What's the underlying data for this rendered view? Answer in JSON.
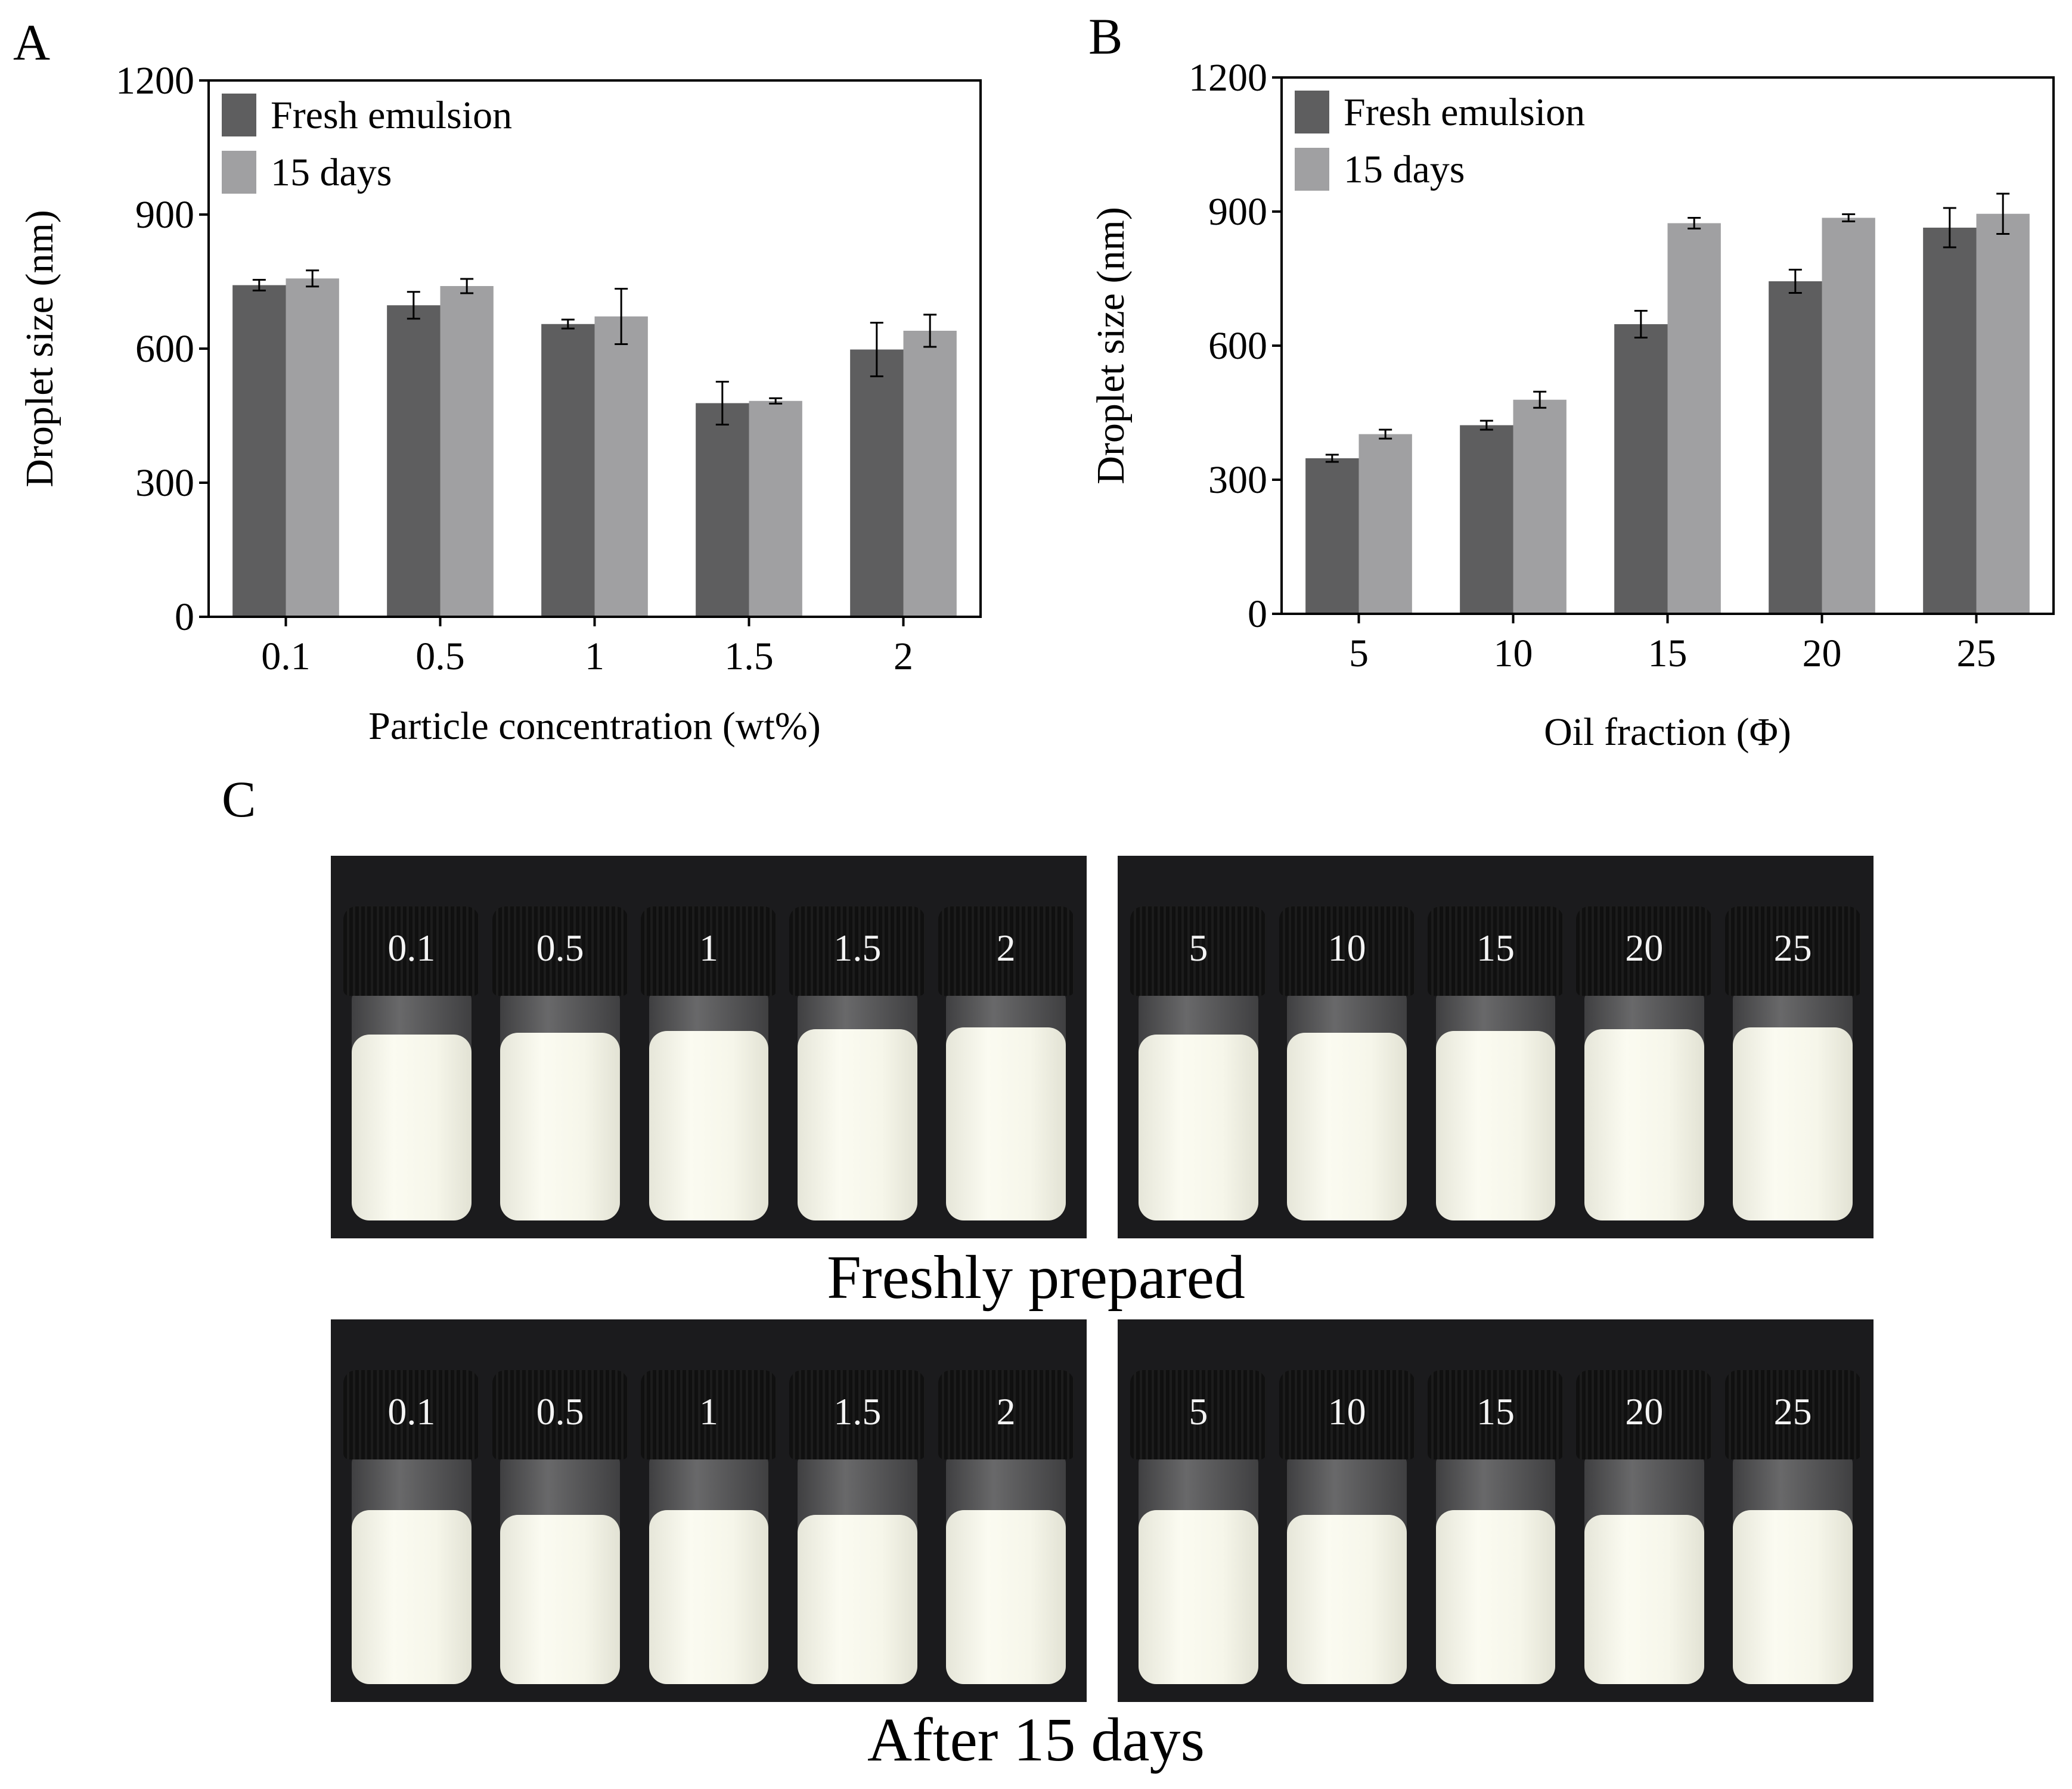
{
  "panels": {
    "a": "A",
    "b": "B",
    "c": "C"
  },
  "colors": {
    "fresh": "#5e5e5f",
    "days15": "#a0a0a2",
    "axis": "#000000"
  },
  "chart_data": [
    {
      "type": "bar",
      "panel": "A",
      "title": "",
      "xlabel": "Particle concentration (wt%)",
      "ylabel": "Droplet size (nm)",
      "categories": [
        "0.1",
        "0.5",
        "1",
        "1.5",
        "2"
      ],
      "ylim": [
        0,
        1200
      ],
      "yticks": [
        "0",
        "300",
        "600",
        "900",
        "1200"
      ],
      "legend_position": "top-left",
      "series": [
        {
          "name": "Fresh emulsion",
          "values": [
            742,
            697,
            655,
            478,
            598
          ],
          "errors": [
            12,
            30,
            10,
            48,
            60
          ]
        },
        {
          "name": "15 days",
          "values": [
            757,
            740,
            672,
            483,
            640
          ],
          "errors": [
            18,
            16,
            62,
            6,
            36
          ]
        }
      ]
    },
    {
      "type": "bar",
      "panel": "B",
      "title": "",
      "xlabel": "Oil fraction (Φ)",
      "ylabel": "Droplet size (nm)",
      "categories": [
        "5",
        "10",
        "15",
        "20",
        "25"
      ],
      "ylim": [
        0,
        1200
      ],
      "yticks": [
        "0",
        "300",
        "600",
        "900",
        "1200"
      ],
      "legend_position": "top-left",
      "series": [
        {
          "name": "Fresh emulsion",
          "values": [
            348,
            422,
            648,
            744,
            864
          ],
          "errors": [
            8,
            10,
            30,
            26,
            44
          ]
        },
        {
          "name": "15 days",
          "values": [
            402,
            479,
            874,
            886,
            895
          ],
          "errors": [
            10,
            18,
            12,
            8,
            45
          ]
        }
      ]
    }
  ],
  "photos": {
    "fresh_caption": "Freshly prepared",
    "after_caption": "After 15 days",
    "fresh_left": [
      "0.1",
      "0.5",
      "1",
      "1.5",
      "2"
    ],
    "fresh_right": [
      "5",
      "10",
      "15",
      "20",
      "25"
    ],
    "after_left": [
      "0.1",
      "0.5",
      "1",
      "1.5",
      "2"
    ],
    "after_right": [
      "5",
      "10",
      "15",
      "20",
      "25"
    ]
  }
}
